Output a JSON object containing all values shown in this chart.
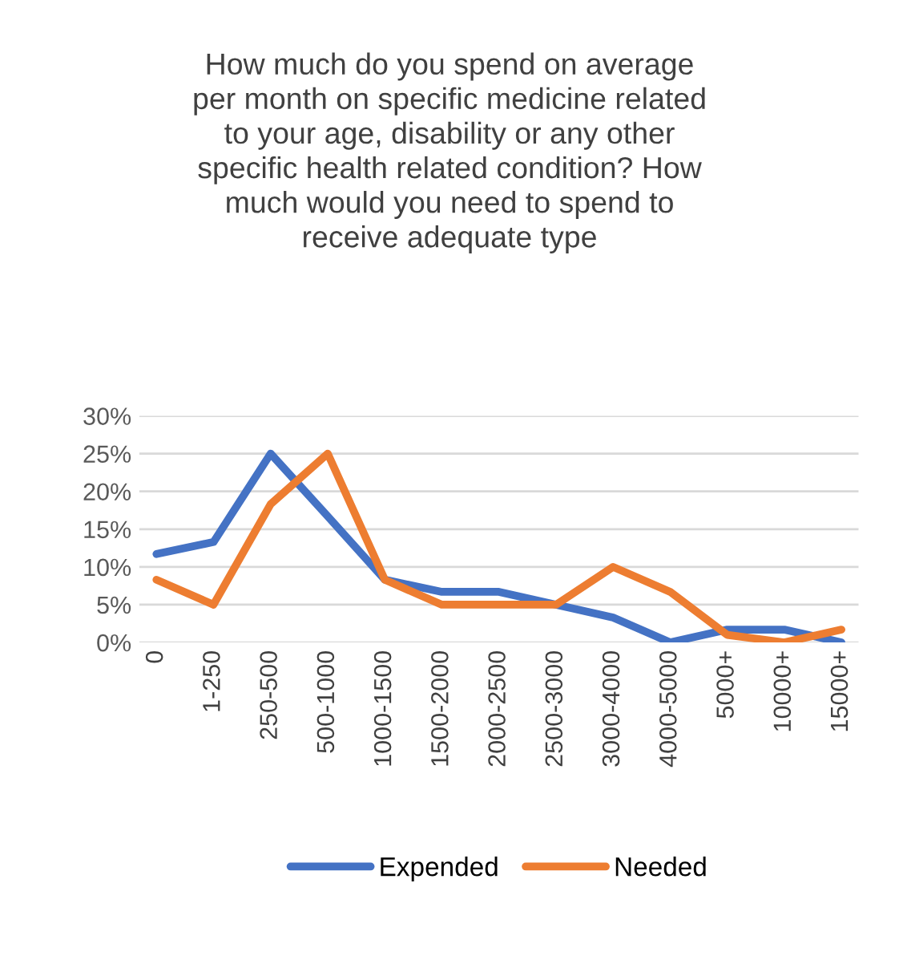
{
  "chart_data": {
    "type": "line",
    "title": "How much do you spend on average\nper month on specific medicine related\nto your age, disability or any other\nspecific health related condition? How\nmuch would you need to spend to\nreceive adequate type",
    "categories": [
      "0",
      "1-250",
      "250-500",
      "500-1000",
      "1000-1500",
      "1500-2000",
      "2000-2500",
      "2500-3000",
      "3000-4000",
      "4000-5000",
      "5000+",
      "10000+",
      "15000+"
    ],
    "series": [
      {
        "name": "Expended",
        "color": "#4472c4",
        "values": [
          11.7,
          13.3,
          25,
          16.7,
          8.3,
          6.7,
          6.7,
          5,
          3.3,
          0,
          1.7,
          1.7,
          0
        ]
      },
      {
        "name": "Needed",
        "color": "#ed7d31",
        "values": [
          8.3,
          5,
          18.3,
          25,
          8.3,
          5,
          5,
          5,
          10,
          6.7,
          1,
          0,
          1.7
        ]
      }
    ],
    "ylim": [
      0,
      30
    ],
    "yticks": [
      {
        "value": 0,
        "label": "0%"
      },
      {
        "value": 5,
        "label": "5%"
      },
      {
        "value": 10,
        "label": "10%"
      },
      {
        "value": 15,
        "label": "15%"
      },
      {
        "value": 20,
        "label": "20%"
      },
      {
        "value": 25,
        "label": "25%"
      },
      {
        "value": 30,
        "label": "30%"
      }
    ],
    "grid": "y",
    "legend": "bottom",
    "marker": "none",
    "line_style": "solid"
  }
}
